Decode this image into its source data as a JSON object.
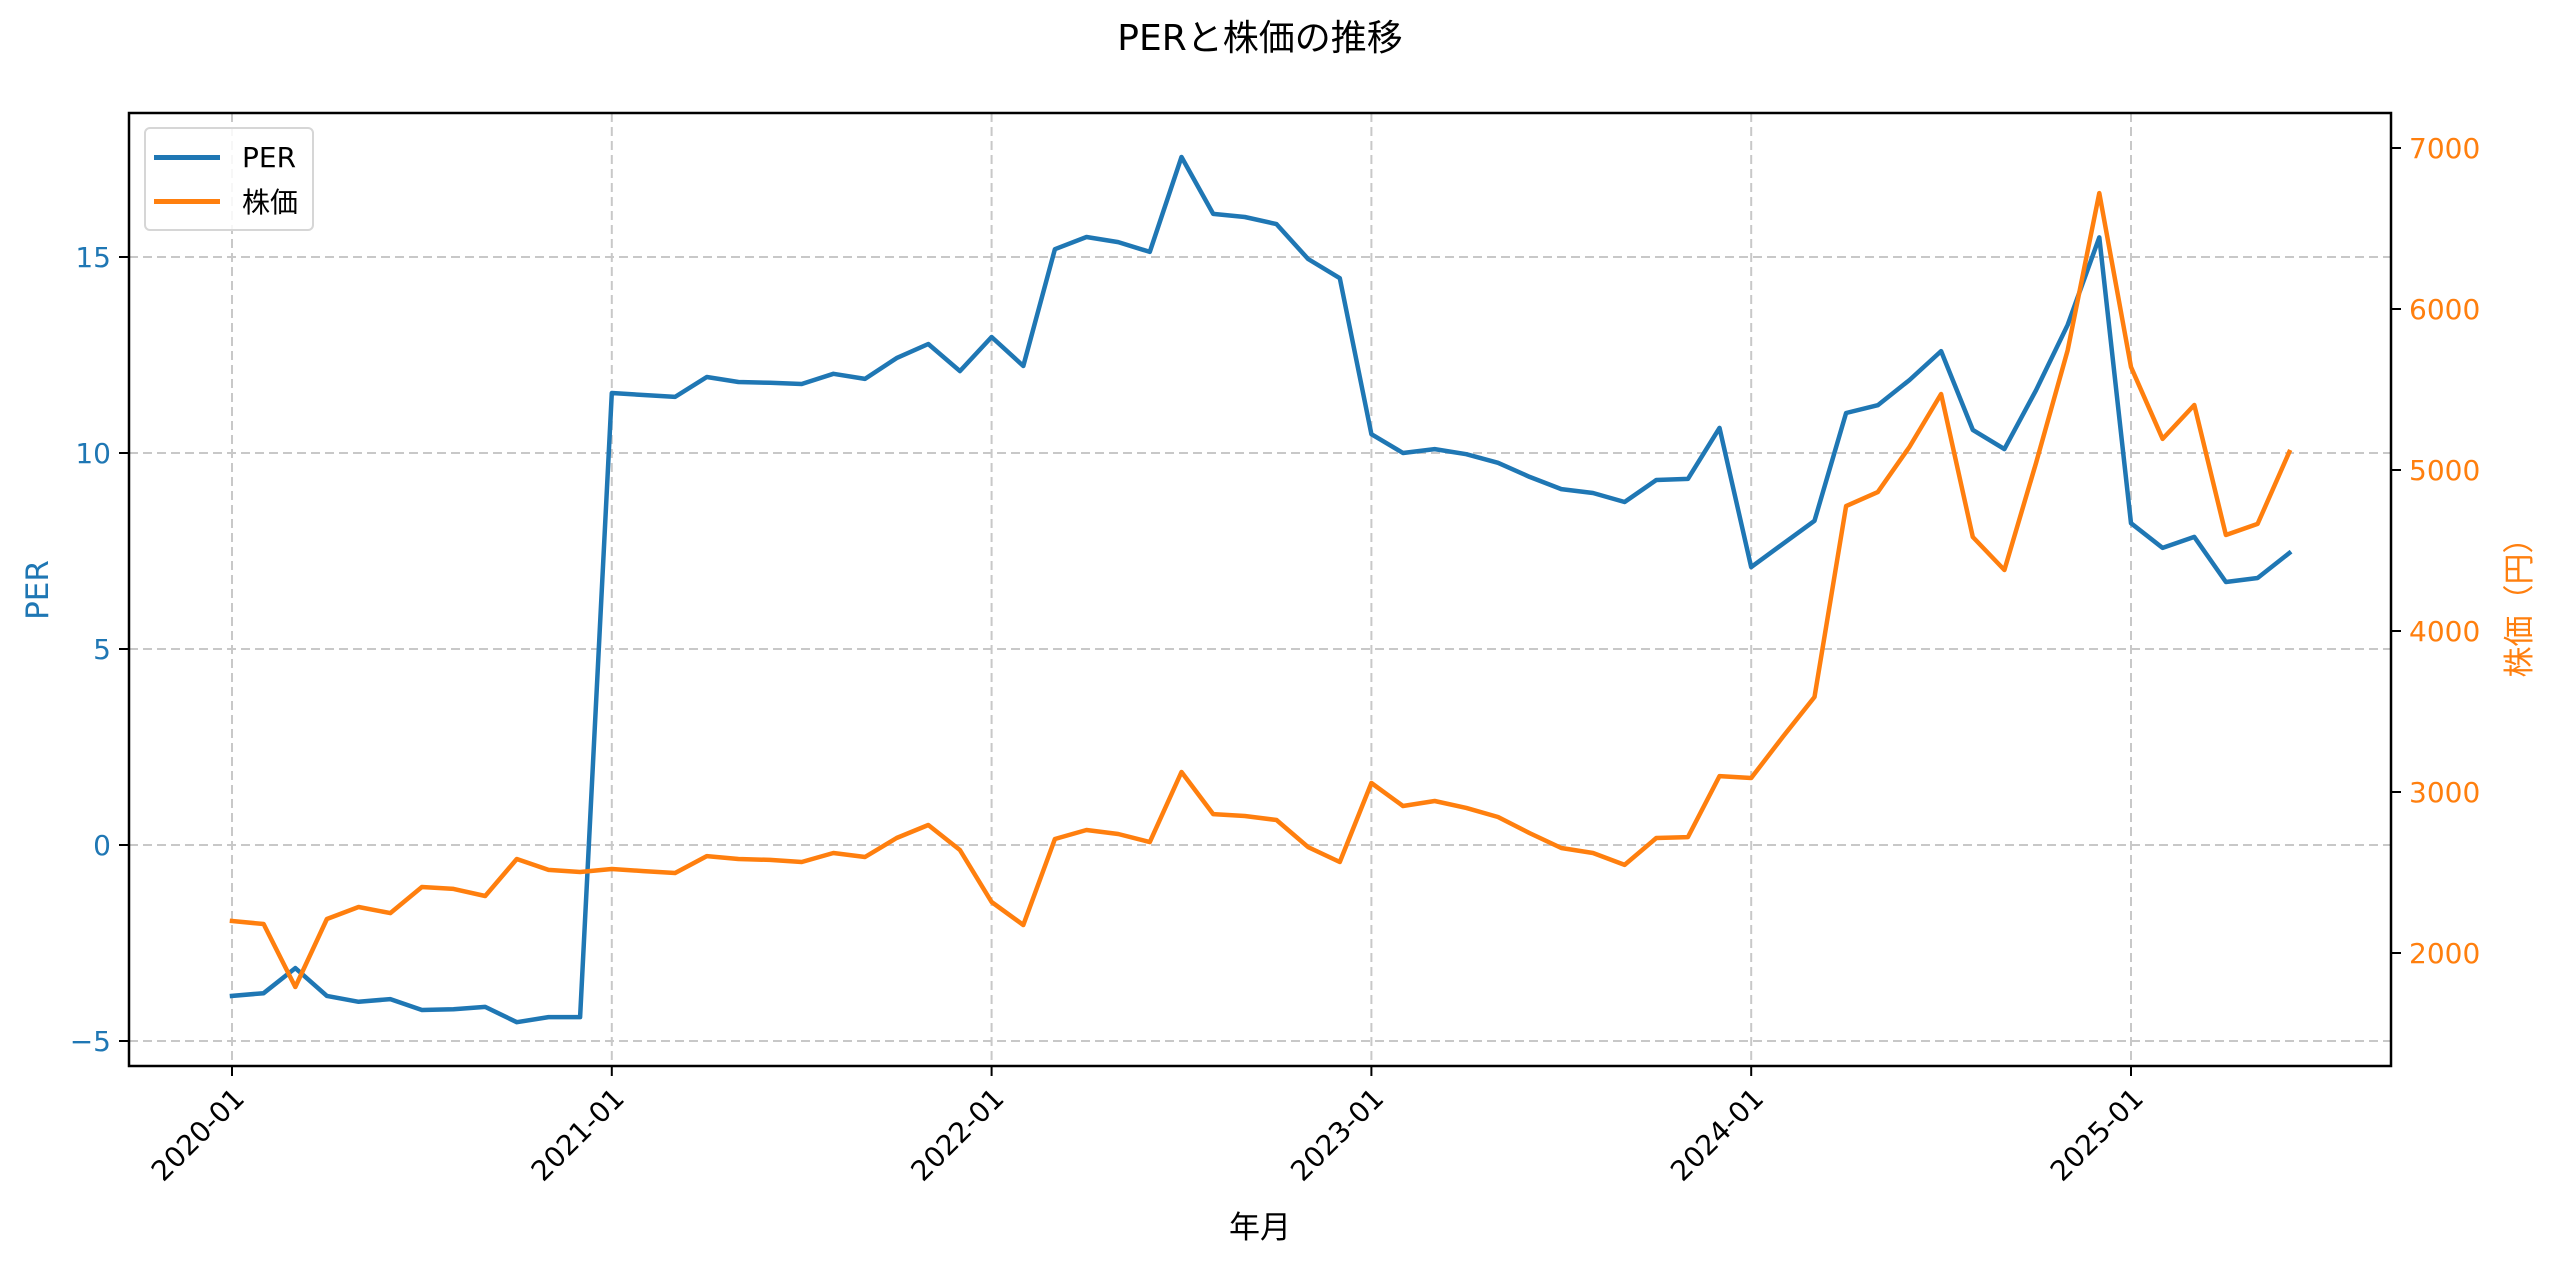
{
  "chart_data": {
    "type": "line",
    "title": "PERと株価の推移",
    "xlabel": "年月",
    "ylabel_left": "PER",
    "ylabel_right": "株価（円）",
    "x_ticks": [
      "2020-01",
      "2021-01",
      "2022-01",
      "2023-01",
      "2024-01",
      "2025-01"
    ],
    "y_left_ticks": [
      -5,
      0,
      5,
      10,
      15
    ],
    "y_right_ticks": [
      2000,
      3000,
      4000,
      5000,
      6000,
      7000
    ],
    "y_left_range": [
      -5.6,
      18.6
    ],
    "y_right_range": [
      1330,
      7220
    ],
    "grid": true,
    "legend_position": "upper left",
    "legend": [
      "PER",
      "株価"
    ],
    "colors": {
      "PER": "#1f77b4",
      "株価": "#ff7f0e"
    },
    "x": [
      "2020-01",
      "2020-02",
      "2020-03",
      "2020-04",
      "2020-05",
      "2020-06",
      "2020-07",
      "2020-08",
      "2020-09",
      "2020-10",
      "2020-11",
      "2020-12",
      "2021-01",
      "2021-02",
      "2021-03",
      "2021-04",
      "2021-05",
      "2021-06",
      "2021-07",
      "2021-08",
      "2021-09",
      "2021-10",
      "2021-11",
      "2021-12",
      "2022-01",
      "2022-02",
      "2022-03",
      "2022-04",
      "2022-05",
      "2022-06",
      "2022-07",
      "2022-08",
      "2022-09",
      "2022-10",
      "2022-11",
      "2022-12",
      "2023-01",
      "2023-02",
      "2023-03",
      "2023-04",
      "2023-05",
      "2023-06",
      "2023-07",
      "2023-08",
      "2023-09",
      "2023-10",
      "2023-11",
      "2023-12",
      "2024-01",
      "2024-02",
      "2024-03",
      "2024-04",
      "2024-05",
      "2024-06",
      "2024-07",
      "2024-08",
      "2024-09",
      "2024-10",
      "2024-11",
      "2024-12",
      "2025-01",
      "2025-02",
      "2025-03",
      "2025-04",
      "2025-05",
      "2025-06"
    ],
    "series": [
      {
        "name": "PER",
        "axis": "left",
        "values": [
          -3.85,
          -3.78,
          -3.14,
          -3.85,
          -4.0,
          -3.93,
          -4.21,
          -4.19,
          -4.13,
          -4.52,
          -4.39,
          -4.39,
          11.53,
          11.48,
          11.43,
          11.94,
          11.81,
          11.79,
          11.76,
          12.02,
          11.89,
          12.42,
          12.78,
          12.09,
          12.96,
          12.22,
          15.2,
          15.51,
          15.38,
          15.13,
          17.55,
          16.1,
          16.02,
          15.84,
          14.95,
          14.46,
          10.48,
          10.0,
          10.1,
          9.97,
          9.75,
          9.39,
          9.08,
          8.98,
          8.75,
          9.31,
          9.34,
          10.64,
          7.09,
          7.68,
          8.27,
          11.02,
          11.22,
          11.86,
          12.6,
          10.59,
          10.1,
          11.6,
          13.27,
          15.5,
          8.21,
          7.58,
          7.86,
          6.71,
          6.81,
          7.45
        ]
      },
      {
        "name": "株価",
        "axis": "right",
        "values": [
          2199,
          2180,
          1789,
          2211,
          2286,
          2248,
          2410,
          2398,
          2354,
          2584,
          2516,
          2503,
          2522,
          2509,
          2497,
          2602,
          2584,
          2578,
          2565,
          2621,
          2596,
          2714,
          2795,
          2640,
          2317,
          2174,
          2708,
          2764,
          2739,
          2689,
          3124,
          2863,
          2851,
          2826,
          2658,
          2565,
          3056,
          2913,
          2944,
          2901,
          2845,
          2745,
          2652,
          2621,
          2547,
          2714,
          2720,
          3099,
          3087,
          3342,
          3590,
          4776,
          4863,
          5143,
          5472,
          4584,
          4379,
          5043,
          5745,
          6720,
          5640,
          5193,
          5404,
          4596,
          4665,
          5112
        ]
      }
    ]
  },
  "legend": {
    "items": [
      {
        "label": "PER",
        "color": "#1f77b4"
      },
      {
        "label": "株価",
        "color": "#ff7f0e"
      }
    ]
  }
}
